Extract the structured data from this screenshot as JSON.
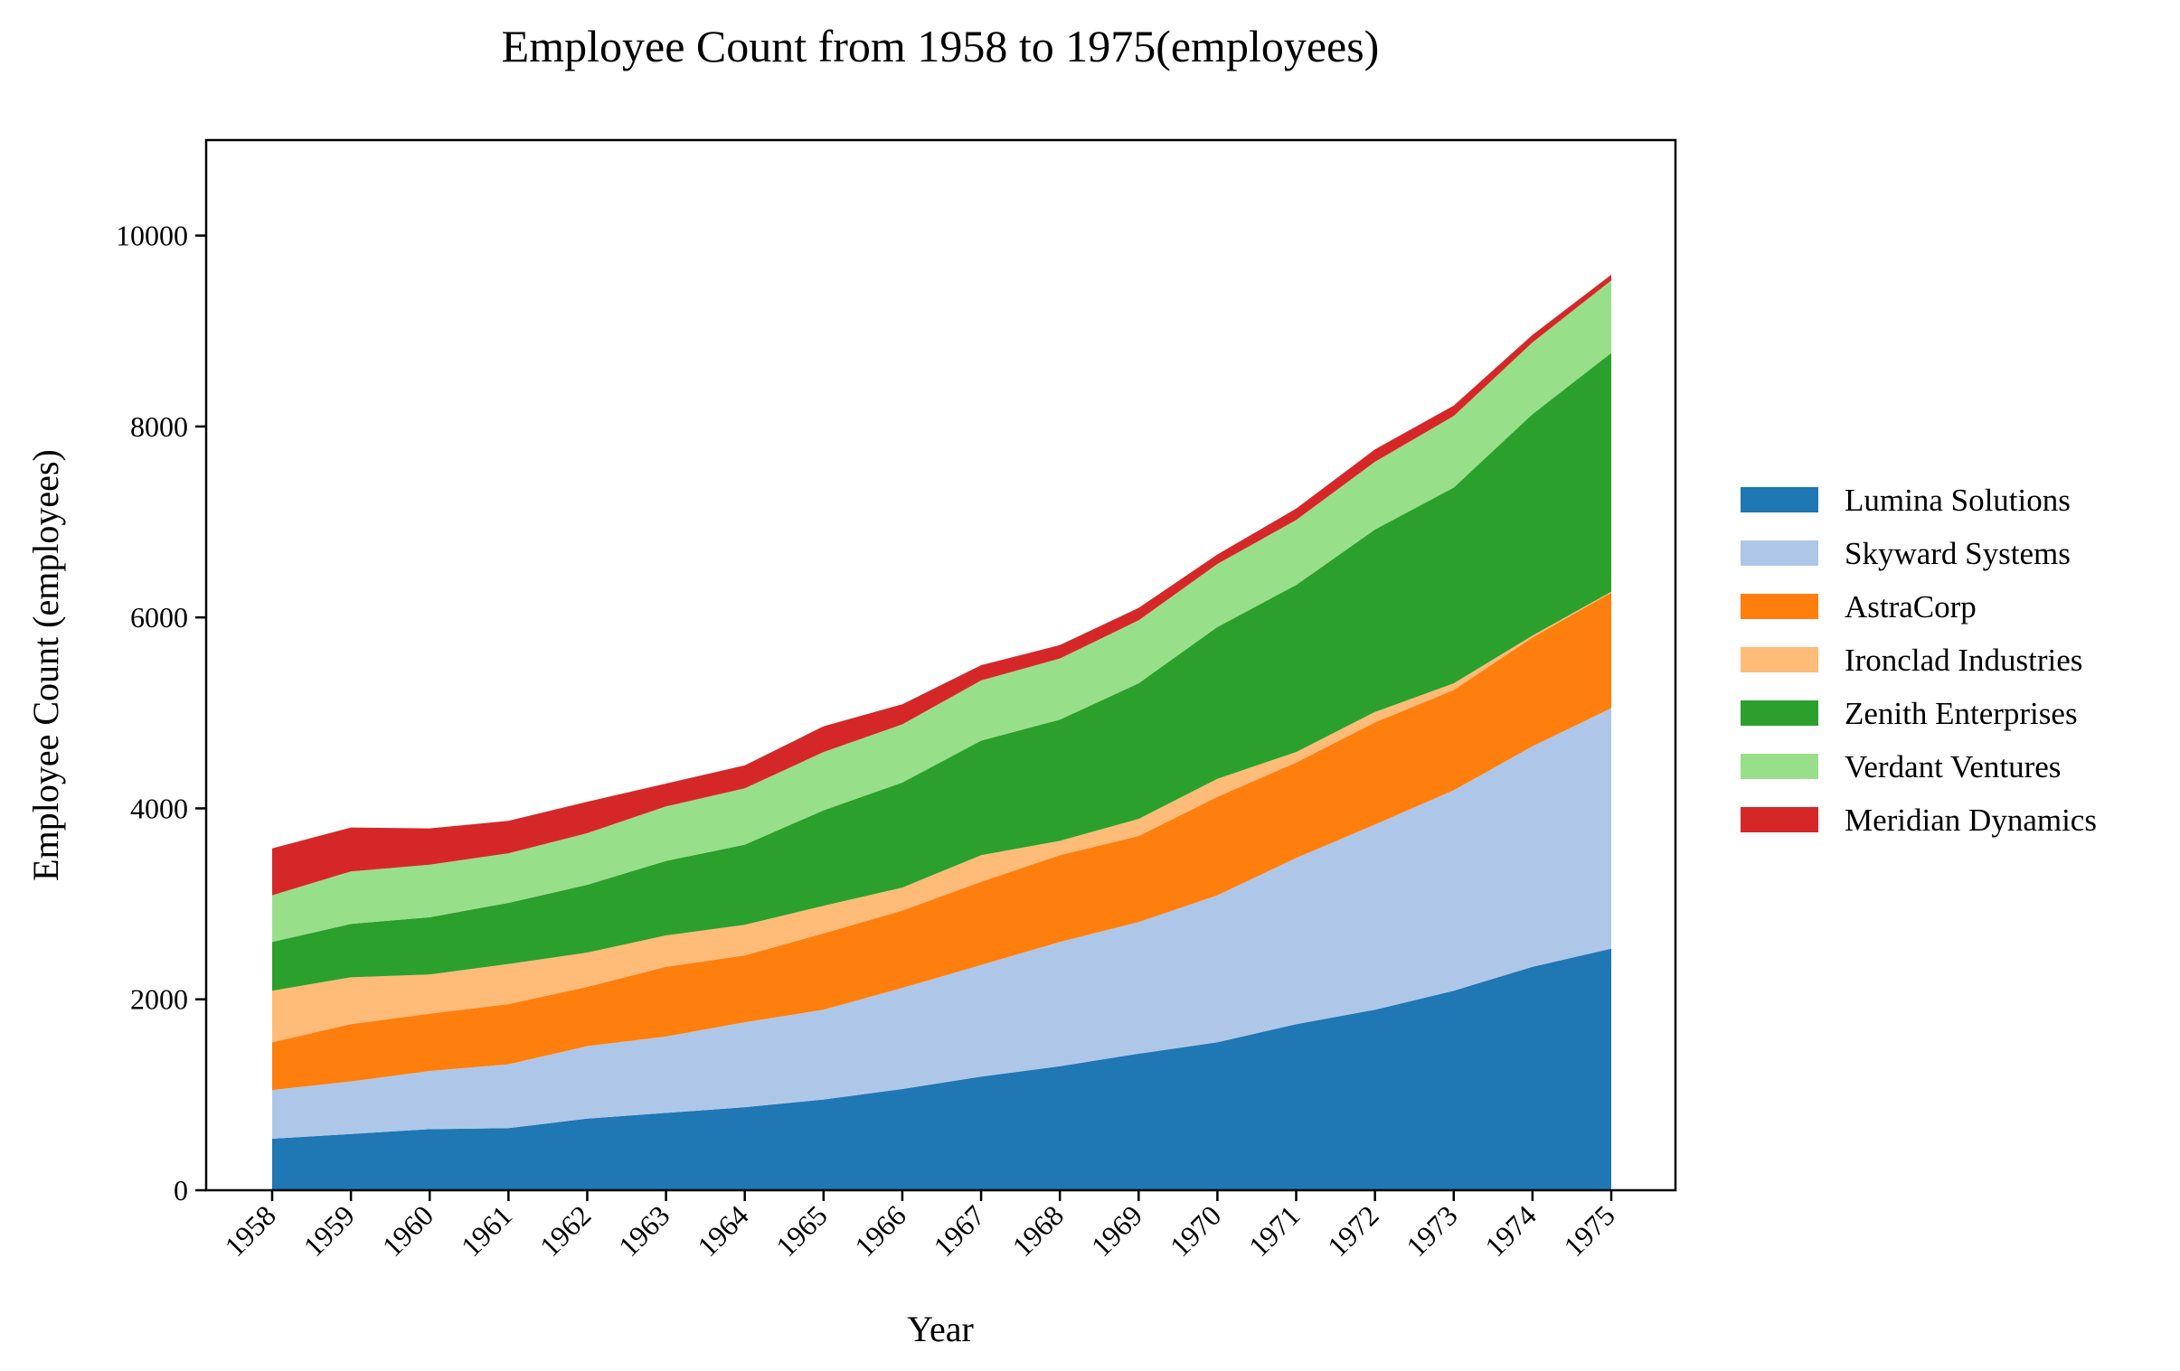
{
  "chart_data": {
    "type": "area",
    "stacked": true,
    "title": "Employee Count from 1958 to 1975(employees)",
    "xlabel": "Year",
    "ylabel": "Employee Count (employees)",
    "x": [
      "1958",
      "1959",
      "1960",
      "1961",
      "1962",
      "1963",
      "1964",
      "1965",
      "1966",
      "1967",
      "1968",
      "1969",
      "1970",
      "1971",
      "1972",
      "1973",
      "1974",
      "1975"
    ],
    "ylim": [
      0,
      11000
    ],
    "yticks": [
      0,
      2000,
      4000,
      6000,
      8000,
      10000
    ],
    "grid": false,
    "legend_position": "right",
    "series": [
      {
        "name": "Lumina Solutions",
        "color": "#1f77b4",
        "values": [
          540,
          590,
          640,
          650,
          750,
          810,
          870,
          950,
          1060,
          1190,
          1300,
          1430,
          1550,
          1740,
          1890,
          2090,
          2340,
          2530
        ]
      },
      {
        "name": "Skyward Systems",
        "color": "#aec7e8",
        "values": [
          510,
          550,
          610,
          670,
          760,
          800,
          890,
          940,
          1060,
          1170,
          1300,
          1380,
          1540,
          1740,
          1940,
          2100,
          2310,
          2520
        ]
      },
      {
        "name": "AstraCorp",
        "color": "#ff7f0e",
        "values": [
          500,
          600,
          600,
          630,
          620,
          730,
          700,
          800,
          810,
          870,
          910,
          900,
          1030,
          1000,
          1070,
          1050,
          1140,
          1210
        ]
      },
      {
        "name": "Ironclad Industries",
        "color": "#ffbb78",
        "values": [
          540,
          490,
          410,
          420,
          360,
          330,
          320,
          290,
          240,
          280,
          150,
          180,
          190,
          110,
          110,
          70,
          20,
          10
        ]
      },
      {
        "name": "Zenith Enterprises",
        "color": "#2ca02c",
        "values": [
          510,
          560,
          600,
          640,
          710,
          780,
          840,
          1000,
          1100,
          1200,
          1270,
          1420,
          1590,
          1750,
          1910,
          2050,
          2320,
          2500
        ]
      },
      {
        "name": "Verdant Ventures",
        "color": "#98df8a",
        "values": [
          490,
          550,
          550,
          520,
          540,
          570,
          590,
          610,
          610,
          630,
          640,
          660,
          660,
          680,
          710,
          750,
          750,
          760
        ]
      },
      {
        "name": "Meridian Dynamics",
        "color": "#d62728",
        "values": [
          490,
          460,
          380,
          340,
          330,
          240,
          240,
          270,
          210,
          160,
          140,
          130,
          100,
          120,
          130,
          110,
          80,
          60
        ]
      }
    ]
  }
}
